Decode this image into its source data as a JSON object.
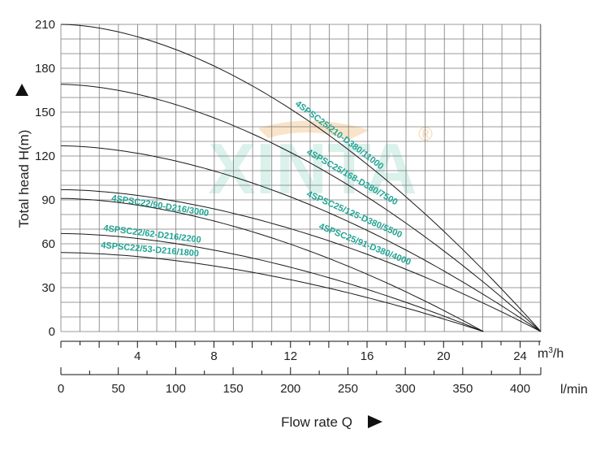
{
  "watermark": {
    "text": "XINTA",
    "registered": "®",
    "color": "#bfe6dc",
    "accent": "#f7d9b3"
  },
  "colors": {
    "grid": "#7a7a7a",
    "curve": "#1a1a1a",
    "label": "#1fa393",
    "text": "#222222"
  },
  "chart_data": {
    "type": "line",
    "title": "",
    "ylabel": "Total head H(m)",
    "xlabel": "Flow rate Q",
    "ylim": [
      0,
      210
    ],
    "yticks": [
      0,
      30,
      60,
      90,
      120,
      150,
      180,
      210
    ],
    "xlim_lmin": [
      0,
      418
    ],
    "x_axes": [
      {
        "unit": "m³/h",
        "unit_base": "m",
        "unit_sup": "3",
        "unit_tail": "/h",
        "ticks": [
          4,
          8,
          12,
          16,
          20,
          24
        ]
      },
      {
        "unit": "l/min",
        "ticks": [
          0,
          50,
          100,
          150,
          200,
          250,
          300,
          350,
          400
        ]
      }
    ],
    "grid": true,
    "series": [
      {
        "name": "4SPSC25/210-D380/11000",
        "shutoff_head": 210,
        "max_flow_lmin": 418
      },
      {
        "name": "4SPSC25/168-D380/7500",
        "shutoff_head": 169,
        "max_flow_lmin": 418
      },
      {
        "name": "4SPSC25/125-D380/5500",
        "shutoff_head": 127,
        "max_flow_lmin": 418
      },
      {
        "name": "4SPSC25/91-D380/4000",
        "shutoff_head": 97,
        "max_flow_lmin": 418
      },
      {
        "name": "4SPSC22/90-D216/3000",
        "shutoff_head": 91,
        "max_flow_lmin": 368
      },
      {
        "name": "4SPSC22/62-D216/2200",
        "shutoff_head": 67,
        "max_flow_lmin": 368
      },
      {
        "name": "4SPSC22/53-D216/1800",
        "shutoff_head": 54,
        "max_flow_lmin": 368
      }
    ]
  }
}
